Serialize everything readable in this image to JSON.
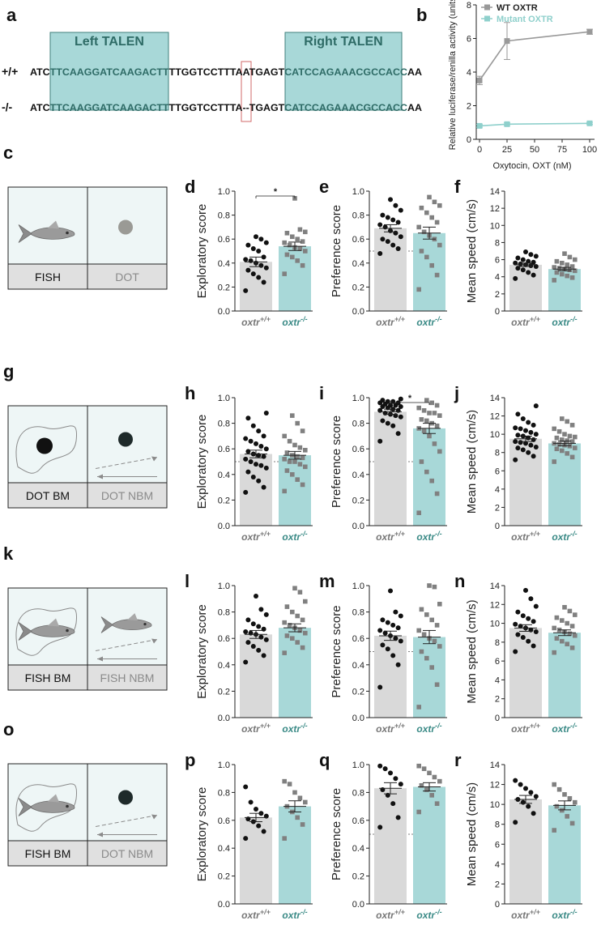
{
  "panel_a": {
    "letter": "a",
    "left_talen": "Left TALEN",
    "right_talen": "Right TALEN",
    "wt_genotype": "+/+",
    "mut_genotype": "-/-",
    "wt_seq": {
      "pre": "ATC",
      "left": "TTCAAGGATCAAGACTT",
      "mid": "TTGGTCCTTTAATGAGT",
      "right": "CATCCAGAAACGCCACC",
      "post": "AA"
    },
    "mut_seq": {
      "pre": "ATC",
      "left": "TTCAAGGATCAAGACTT",
      "mid": "TTGGTCCTTTA--TGAGT",
      "right": "CATCCAGAAACGCCACC",
      "post": "AA"
    }
  },
  "schematics": [
    {
      "letter": "c",
      "left_label": "FISH",
      "right_label": "DOT",
      "left_icon": "fish-icon",
      "right_icon": "dot-icon"
    },
    {
      "letter": "g",
      "left_label": "DOT BM",
      "right_label": "DOT NBM",
      "left_icon": "dot-icon",
      "right_icon": "dot-icon"
    },
    {
      "letter": "k",
      "left_label": "FISH BM",
      "right_label": "FISH NBM",
      "left_icon": "fish-icon",
      "right_icon": "fish-icon"
    },
    {
      "letter": "o",
      "left_label": "FISH BM",
      "right_label": "DOT NBM",
      "left_icon": "fish-icon",
      "right_icon": "dot-icon"
    }
  ],
  "colors": {
    "wt_bar": "#d9d9d9",
    "mut_bar": "#a8d8d8",
    "mut_text": "#3a8a86",
    "wt_text": "#777777",
    "talen_box": "#a8d8d8",
    "schematic_bg": "#eef6f6",
    "schematic_label_bg": "#e0e0e0"
  },
  "chart_data": [
    {
      "id": "b",
      "letter": "b",
      "type": "line",
      "ylabel": "Relative luciferase/renilla activity (units)",
      "xlabel": "Oxytocin, OXT (nM)",
      "xlim": [
        0,
        100
      ],
      "ylim": [
        0,
        8
      ],
      "xticks": [
        "0",
        "25",
        "50",
        "75",
        "100"
      ],
      "yticks": [
        "0",
        "2",
        "4",
        "6",
        "8"
      ],
      "legend_position": "top-right",
      "series": [
        {
          "name": "WT OXTR",
          "color": "#999999",
          "x": [
            0,
            25,
            100
          ],
          "y": [
            3.5,
            5.85,
            6.4
          ],
          "err": [
            0.25,
            1.1,
            0.15
          ]
        },
        {
          "name": "Mutant OXTR",
          "color": "#8fd0cc",
          "x": [
            0,
            25,
            100
          ],
          "y": [
            0.8,
            0.9,
            0.95
          ],
          "err": [
            0.08,
            0.08,
            0.06
          ]
        }
      ]
    },
    {
      "id": "d",
      "letter": "d",
      "type": "bar",
      "ylabel": "Exploratory score",
      "ylim": [
        0,
        1
      ],
      "yticks": [
        "0.0",
        "0.2",
        "0.4",
        "0.6",
        "0.8",
        "1.0"
      ],
      "groups": [
        {
          "label": "oxtr",
          "sup": "+/+",
          "mean": 0.41,
          "sem": 0.04,
          "points": [
            0.17,
            0.24,
            0.28,
            0.31,
            0.34,
            0.36,
            0.38,
            0.4,
            0.42,
            0.43,
            0.45,
            0.5,
            0.52,
            0.55,
            0.57,
            0.6,
            0.62
          ]
        },
        {
          "label": "oxtr",
          "sup": "-/-",
          "mean": 0.54,
          "sem": 0.035,
          "points": [
            0.31,
            0.38,
            0.42,
            0.45,
            0.47,
            0.5,
            0.52,
            0.53,
            0.55,
            0.57,
            0.58,
            0.6,
            0.62,
            0.65,
            0.66,
            0.68,
            0.94
          ]
        }
      ],
      "significance": "*",
      "refline": null
    },
    {
      "id": "e",
      "letter": "e",
      "type": "bar",
      "ylabel": "Preference score",
      "ylim": [
        0,
        1
      ],
      "yticks": [
        "0.0",
        "0.2",
        "0.4",
        "0.6",
        "0.8",
        "1.0"
      ],
      "groups": [
        {
          "label": "oxtr",
          "sup": "+/+",
          "mean": 0.69,
          "sem": 0.03,
          "points": [
            0.48,
            0.52,
            0.55,
            0.58,
            0.6,
            0.62,
            0.65,
            0.67,
            0.7,
            0.72,
            0.74,
            0.76,
            0.78,
            0.8,
            0.84,
            0.88,
            0.93
          ]
        },
        {
          "label": "oxtr",
          "sup": "-/-",
          "mean": 0.65,
          "sem": 0.05,
          "points": [
            0.18,
            0.3,
            0.38,
            0.45,
            0.5,
            0.55,
            0.6,
            0.63,
            0.66,
            0.7,
            0.74,
            0.78,
            0.82,
            0.86,
            0.88,
            0.91,
            0.95
          ]
        }
      ],
      "significance": "",
      "refline": 0.5
    },
    {
      "id": "f",
      "letter": "f",
      "type": "bar",
      "ylabel": "Mean speed (cm/s)",
      "ylim": [
        0,
        14
      ],
      "yticks": [
        "0",
        "2",
        "4",
        "6",
        "8",
        "10",
        "12",
        "14"
      ],
      "groups": [
        {
          "label": "oxtr",
          "sup": "+/+",
          "mean": 5.4,
          "sem": 0.2,
          "points": [
            3.8,
            4.2,
            4.5,
            4.8,
            5.0,
            5.2,
            5.4,
            5.5,
            5.6,
            5.7,
            5.8,
            6.0,
            6.2,
            6.4,
            6.6,
            6.9,
            5.3
          ]
        },
        {
          "label": "oxtr",
          "sup": "-/-",
          "mean": 4.9,
          "sem": 0.2,
          "points": [
            3.6,
            3.9,
            4.1,
            4.3,
            4.5,
            4.7,
            4.8,
            4.9,
            5.0,
            5.1,
            5.2,
            5.4,
            5.6,
            5.8,
            6.0,
            6.3,
            6.7
          ]
        }
      ],
      "significance": "",
      "refline": null
    },
    {
      "id": "h",
      "letter": "h",
      "type": "bar",
      "ylabel": "Exploratory score",
      "ylim": [
        0,
        1
      ],
      "yticks": [
        "0.0",
        "0.2",
        "0.4",
        "0.6",
        "0.8",
        "1.0"
      ],
      "groups": [
        {
          "label": "oxtr",
          "sup": "+/+",
          "mean": 0.56,
          "sem": 0.03,
          "points": [
            0.26,
            0.3,
            0.35,
            0.38,
            0.42,
            0.45,
            0.48,
            0.5,
            0.52,
            0.54,
            0.56,
            0.58,
            0.6,
            0.62,
            0.64,
            0.66,
            0.68,
            0.7,
            0.74,
            0.78,
            0.84,
            0.88,
            0.55,
            0.47
          ]
        },
        {
          "label": "oxtr",
          "sup": "-/-",
          "mean": 0.55,
          "sem": 0.03,
          "points": [
            0.27,
            0.32,
            0.36,
            0.4,
            0.43,
            0.46,
            0.48,
            0.5,
            0.52,
            0.53,
            0.55,
            0.57,
            0.59,
            0.61,
            0.63,
            0.66,
            0.7,
            0.74,
            0.8,
            0.86,
            0.54,
            0.5
          ]
        }
      ],
      "significance": "",
      "refline": 0.5
    },
    {
      "id": "i",
      "letter": "i",
      "type": "bar",
      "ylabel": "Preference score",
      "ylim": [
        0,
        1
      ],
      "yticks": [
        "0.0",
        "0.2",
        "0.4",
        "0.6",
        "0.8",
        "1.0"
      ],
      "groups": [
        {
          "label": "oxtr",
          "sup": "+/+",
          "mean": 0.89,
          "sem": 0.02,
          "points": [
            0.66,
            0.72,
            0.78,
            0.82,
            0.85,
            0.87,
            0.88,
            0.9,
            0.91,
            0.92,
            0.93,
            0.94,
            0.95,
            0.96,
            0.97,
            0.98,
            0.96,
            0.94,
            0.9,
            0.86,
            0.8,
            0.93,
            0.97,
            0.99
          ]
        },
        {
          "label": "oxtr",
          "sup": "-/-",
          "mean": 0.76,
          "sem": 0.04,
          "points": [
            0.1,
            0.25,
            0.35,
            0.42,
            0.5,
            0.58,
            0.64,
            0.7,
            0.74,
            0.78,
            0.8,
            0.83,
            0.86,
            0.88,
            0.9,
            0.92,
            0.94,
            0.96,
            0.98,
            0.82,
            0.76,
            0.88
          ]
        }
      ],
      "significance": "*",
      "refline": 0.5
    },
    {
      "id": "j",
      "letter": "j",
      "type": "bar",
      "ylabel": "Mean speed (cm/s)",
      "ylim": [
        0,
        14
      ],
      "yticks": [
        "0",
        "2",
        "4",
        "6",
        "8",
        "10",
        "12",
        "14"
      ],
      "groups": [
        {
          "label": "oxtr",
          "sup": "+/+",
          "mean": 9.5,
          "sem": 0.3,
          "points": [
            7.2,
            7.6,
            8.0,
            8.3,
            8.6,
            8.8,
            9.0,
            9.2,
            9.4,
            9.6,
            9.8,
            10.0,
            10.2,
            10.4,
            10.7,
            11.0,
            11.3,
            11.7,
            12.2,
            13.1,
            9.1,
            8.5,
            9.9,
            10.6
          ]
        },
        {
          "label": "oxtr",
          "sup": "-/-",
          "mean": 9.0,
          "sem": 0.25,
          "points": [
            7.0,
            7.5,
            7.9,
            8.2,
            8.5,
            8.7,
            8.9,
            9.0,
            9.2,
            9.4,
            9.6,
            9.8,
            10.0,
            10.3,
            10.6,
            11.0,
            11.4,
            11.7,
            8.8,
            9.3,
            9.7,
            8.4
          ]
        }
      ],
      "significance": "",
      "refline": null
    },
    {
      "id": "l",
      "letter": "l",
      "type": "bar",
      "ylabel": "Exploratory score",
      "ylim": [
        0,
        1
      ],
      "yticks": [
        "0.0",
        "0.2",
        "0.4",
        "0.6",
        "0.8",
        "1.0"
      ],
      "groups": [
        {
          "label": "oxtr",
          "sup": "+/+",
          "mean": 0.63,
          "sem": 0.03,
          "points": [
            0.42,
            0.47,
            0.51,
            0.54,
            0.57,
            0.59,
            0.61,
            0.63,
            0.64,
            0.65,
            0.67,
            0.69,
            0.71,
            0.74,
            0.78,
            0.82,
            0.92
          ]
        },
        {
          "label": "oxtr",
          "sup": "-/-",
          "mean": 0.68,
          "sem": 0.03,
          "points": [
            0.49,
            0.53,
            0.57,
            0.6,
            0.62,
            0.64,
            0.66,
            0.68,
            0.7,
            0.72,
            0.74,
            0.77,
            0.8,
            0.84,
            0.88,
            0.95,
            0.98
          ]
        }
      ],
      "significance": "",
      "refline": null
    },
    {
      "id": "m",
      "letter": "m",
      "type": "bar",
      "ylabel": "Preference score",
      "ylim": [
        0,
        1
      ],
      "yticks": [
        "0.0",
        "0.2",
        "0.4",
        "0.6",
        "0.8",
        "1.0"
      ],
      "groups": [
        {
          "label": "oxtr",
          "sup": "+/+",
          "mean": 0.62,
          "sem": 0.035,
          "points": [
            0.23,
            0.4,
            0.47,
            0.52,
            0.55,
            0.58,
            0.6,
            0.62,
            0.64,
            0.66,
            0.68,
            0.7,
            0.72,
            0.74,
            0.77,
            0.8,
            0.96
          ]
        },
        {
          "label": "oxtr",
          "sup": "-/-",
          "mean": 0.61,
          "sem": 0.05,
          "points": [
            0.08,
            0.25,
            0.38,
            0.45,
            0.5,
            0.54,
            0.58,
            0.6,
            0.63,
            0.66,
            0.7,
            0.74,
            0.78,
            0.82,
            0.86,
            0.99,
            1.0
          ]
        }
      ],
      "significance": "",
      "refline": 0.5
    },
    {
      "id": "n",
      "letter": "n",
      "type": "bar",
      "ylabel": "Mean speed (cm/s)",
      "ylim": [
        0,
        14
      ],
      "yticks": [
        "0",
        "2",
        "4",
        "6",
        "8",
        "10",
        "12",
        "14"
      ],
      "groups": [
        {
          "label": "oxtr",
          "sup": "+/+",
          "mean": 9.5,
          "sem": 0.35,
          "points": [
            7.0,
            7.6,
            8.1,
            8.5,
            8.8,
            9.1,
            9.3,
            9.5,
            9.7,
            9.9,
            10.2,
            10.5,
            10.8,
            11.2,
            11.8,
            12.6,
            13.5
          ]
        },
        {
          "label": "oxtr",
          "sup": "-/-",
          "mean": 9.0,
          "sem": 0.3,
          "points": [
            6.9,
            7.4,
            7.8,
            8.1,
            8.4,
            8.7,
            8.9,
            9.1,
            9.3,
            9.5,
            9.7,
            10.0,
            10.3,
            10.6,
            10.9,
            11.3,
            11.7
          ]
        }
      ],
      "significance": "",
      "refline": null
    },
    {
      "id": "p",
      "letter": "p",
      "type": "bar",
      "ylabel": "Exploratory score",
      "ylim": [
        0,
        1
      ],
      "yticks": [
        "0.0",
        "0.2",
        "0.4",
        "0.6",
        "0.8",
        "1.0"
      ],
      "groups": [
        {
          "label": "oxtr",
          "sup": "+/+",
          "mean": 0.62,
          "sem": 0.03,
          "points": [
            0.47,
            0.52,
            0.56,
            0.59,
            0.61,
            0.63,
            0.65,
            0.68,
            0.73,
            0.84
          ]
        },
        {
          "label": "oxtr",
          "sup": "-/-",
          "mean": 0.7,
          "sem": 0.04,
          "points": [
            0.47,
            0.57,
            0.62,
            0.66,
            0.7,
            0.73,
            0.76,
            0.8,
            0.86,
            0.88
          ]
        }
      ],
      "significance": "",
      "refline": null
    },
    {
      "id": "q",
      "letter": "q",
      "type": "bar",
      "ylabel": "Preference score",
      "ylim": [
        0,
        1
      ],
      "yticks": [
        "0.0",
        "0.2",
        "0.4",
        "0.6",
        "0.8",
        "1.0"
      ],
      "groups": [
        {
          "label": "oxtr",
          "sup": "+/+",
          "mean": 0.83,
          "sem": 0.04,
          "points": [
            0.55,
            0.62,
            0.72,
            0.78,
            0.82,
            0.86,
            0.9,
            0.94,
            0.97,
            0.99
          ]
        },
        {
          "label": "oxtr",
          "sup": "-/-",
          "mean": 0.84,
          "sem": 0.03,
          "points": [
            0.66,
            0.72,
            0.78,
            0.82,
            0.85,
            0.88,
            0.91,
            0.94,
            0.97,
            0.99
          ]
        }
      ],
      "significance": "",
      "refline": 0.5
    },
    {
      "id": "r",
      "letter": "r",
      "type": "bar",
      "ylabel": "Mean speed (cm/s)",
      "ylim": [
        0,
        14
      ],
      "yticks": [
        "0",
        "2",
        "4",
        "6",
        "8",
        "10",
        "12",
        "14"
      ],
      "groups": [
        {
          "label": "oxtr",
          "sup": "+/+",
          "mean": 10.5,
          "sem": 0.4,
          "points": [
            8.2,
            9.1,
            9.8,
            10.2,
            10.5,
            10.8,
            11.2,
            11.6,
            12.0,
            12.4
          ]
        },
        {
          "label": "oxtr",
          "sup": "-/-",
          "mean": 9.9,
          "sem": 0.45,
          "points": [
            7.4,
            8.1,
            8.8,
            9.4,
            9.8,
            10.2,
            10.6,
            11.0,
            11.5,
            12.0
          ]
        }
      ],
      "significance": "",
      "refline": null
    }
  ]
}
